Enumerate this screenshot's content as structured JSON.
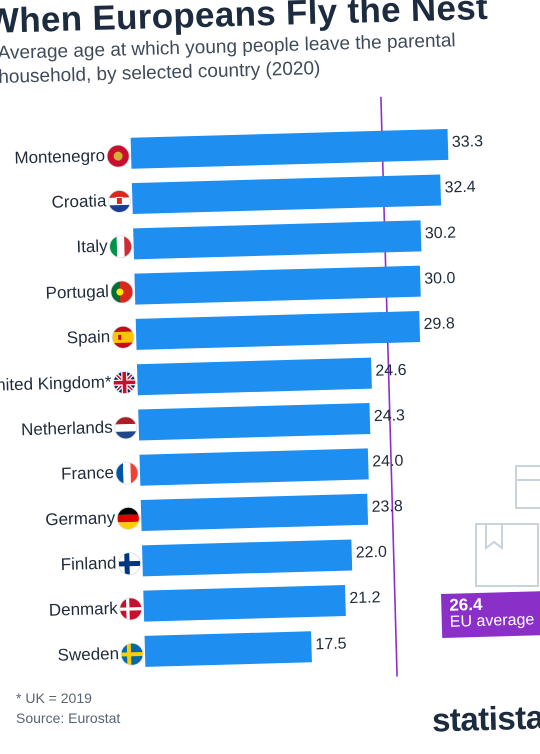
{
  "chart": {
    "title": "When Europeans Fly the Nest",
    "subtitle": "Average age at which young people leave the parental household, by selected country (2020)",
    "footnote": "* UK = 2019",
    "source": "Source: Eurostat",
    "brand": "statista"
  },
  "eu_average": {
    "value": "26.4",
    "label": "EU average"
  },
  "chart_data": {
    "type": "bar",
    "orientation": "horizontal",
    "title": "When Europeans Fly the Nest",
    "subtitle": "Average age at which young people leave the parental household, by selected country (2020)",
    "categories": [
      "Montenegro",
      "Croatia",
      "Italy",
      "Portugal",
      "Spain",
      "United Kingdom*",
      "Netherlands",
      "France",
      "Germany",
      "Finland",
      "Denmark",
      "Sweden"
    ],
    "values": [
      33.3,
      32.4,
      30.2,
      30.0,
      29.8,
      24.6,
      24.3,
      24.0,
      23.8,
      22.0,
      21.2,
      17.5
    ],
    "value_labels": [
      "33.3",
      "32.4",
      "30.2",
      "30.0",
      "29.8",
      "24.6",
      "24.3",
      "24.0",
      "23.8",
      "22.0",
      "21.2",
      "17.5"
    ],
    "reference_line": {
      "label": "EU average",
      "value": 26.4
    },
    "xlim": [
      0,
      33.3
    ],
    "bar_color": "#1f8ef1",
    "reference_color": "#8b2fc9"
  },
  "flags": [
    "montenegro-flag",
    "croatia-flag",
    "italy-flag",
    "portugal-flag",
    "spain-flag",
    "uk-flag",
    "netherlands-flag",
    "france-flag",
    "germany-flag",
    "finland-flag",
    "denmark-flag",
    "sweden-flag"
  ]
}
